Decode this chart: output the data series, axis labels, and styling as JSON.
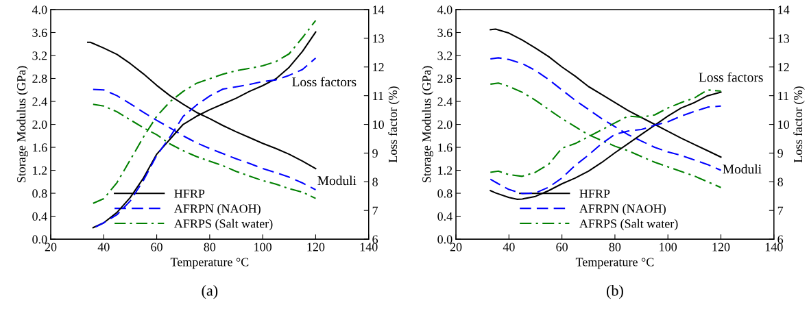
{
  "chart_data": [
    {
      "type": "line",
      "xlabel": "Temperature °C",
      "ylabel": "Storage Modulus (GPa)",
      "y2label": "Loss factor (%)",
      "xlim": [
        20,
        140
      ],
      "xticks": [
        20,
        40,
        60,
        80,
        100,
        120,
        140
      ],
      "ylim": [
        0,
        4
      ],
      "yticks": [
        {
          "value": 0,
          "label": "0.0"
        },
        {
          "value": 0.4,
          "label": "0.4"
        },
        {
          "value": 0.8,
          "label": "0.8"
        },
        {
          "value": 1.2,
          "label": "1.2"
        },
        {
          "value": 1.6,
          "label": "1.6"
        },
        {
          "value": 2,
          "label": "2.0"
        },
        {
          "value": 2.4,
          "label": "2.4"
        },
        {
          "value": 2.8,
          "label": "2.8"
        },
        {
          "value": 3.2,
          "label": "3.2"
        },
        {
          "value": 3.6,
          "label": "3.6"
        },
        {
          "value": 4,
          "label": "4.0"
        }
      ],
      "y2lim": [
        6,
        14
      ],
      "y2ticks": [
        6,
        7,
        8,
        9,
        10,
        11,
        12,
        13,
        14
      ],
      "grid": false,
      "legend": "bottom",
      "marker": "none",
      "annotations": [
        "Loss factors",
        "Moduli",
        "(a)"
      ],
      "series": [
        {
          "name": "HFRP",
          "color": "#000000",
          "line_style": "solid",
          "x": [
            34,
            35,
            40,
            45,
            50,
            55,
            60,
            65,
            70,
            75,
            80,
            85,
            90,
            95,
            100,
            105,
            110,
            115,
            120
          ],
          "values": [
            3.43,
            3.43,
            3.33,
            3.22,
            3.06,
            2.88,
            2.68,
            2.5,
            2.35,
            2.21,
            2.1,
            1.98,
            1.87,
            1.77,
            1.67,
            1.58,
            1.48,
            1.36,
            1.23
          ]
        },
        {
          "name": "AFRPN (NAOH)",
          "color": "#0000ff",
          "line_style": "dashed",
          "x": [
            36,
            40,
            45,
            50,
            55,
            60,
            65,
            70,
            75,
            80,
            85,
            90,
            95,
            100,
            105,
            110,
            115,
            120
          ],
          "values": [
            2.61,
            2.6,
            2.5,
            2.36,
            2.21,
            2.07,
            1.94,
            1.8,
            1.68,
            1.58,
            1.49,
            1.4,
            1.32,
            1.23,
            1.16,
            1.08,
            0.98,
            0.86
          ]
        },
        {
          "name": "AFRPS (Salt water)",
          "color": "#008000",
          "line_style": "dashdot",
          "x": [
            36,
            40,
            45,
            50,
            55,
            60,
            65,
            70,
            75,
            80,
            85,
            90,
            95,
            100,
            105,
            110,
            115,
            120
          ],
          "values": [
            2.35,
            2.32,
            2.22,
            2.08,
            1.94,
            1.82,
            1.66,
            1.54,
            1.44,
            1.36,
            1.28,
            1.18,
            1.1,
            1.02,
            0.96,
            0.88,
            0.82,
            0.71
          ]
        },
        {
          "color": "#000000",
          "line_style": "solid",
          "axis": "y2",
          "x": [
            36,
            40,
            45,
            50,
            55,
            60,
            65,
            70,
            75,
            80,
            85,
            90,
            95,
            100,
            105,
            110,
            115,
            120
          ],
          "values": [
            6.4,
            6.57,
            6.93,
            7.45,
            8.13,
            8.96,
            9.48,
            10.0,
            10.28,
            10.51,
            10.71,
            10.91,
            11.15,
            11.35,
            11.59,
            11.99,
            12.54,
            13.22
          ]
        },
        {
          "color": "#0000ff",
          "line_style": "dashed",
          "axis": "y2",
          "x": [
            37,
            40,
            45,
            50,
            55,
            60,
            65,
            70,
            75,
            80,
            85,
            90,
            95,
            100,
            105,
            110,
            115,
            120
          ],
          "values": [
            6.43,
            6.57,
            6.85,
            7.33,
            8.05,
            8.92,
            9.56,
            10.28,
            10.67,
            10.99,
            11.23,
            11.31,
            11.39,
            11.49,
            11.55,
            11.71,
            11.91,
            12.31
          ]
        },
        {
          "color": "#008000",
          "line_style": "dashdot",
          "axis": "y2",
          "x": [
            36,
            40,
            45,
            50,
            55,
            60,
            65,
            70,
            75,
            80,
            85,
            90,
            95,
            100,
            105,
            110,
            115,
            120
          ],
          "values": [
            7.25,
            7.41,
            7.97,
            8.76,
            9.56,
            10.28,
            10.79,
            11.15,
            11.43,
            11.59,
            11.75,
            11.87,
            11.95,
            12.04,
            12.19,
            12.46,
            13.02,
            13.62
          ]
        }
      ]
    },
    {
      "type": "line",
      "xlabel": "Temperature °C",
      "ylabel": "Storage Modulus (GPa)",
      "y2label": "Loss factor (%)",
      "xlim": [
        20,
        140
      ],
      "xticks": [
        20,
        40,
        60,
        80,
        100,
        120,
        140
      ],
      "ylim": [
        0,
        4
      ],
      "yticks": [
        {
          "value": 0,
          "label": "0.0"
        },
        {
          "value": 0.4,
          "label": "0.4"
        },
        {
          "value": 0.8,
          "label": "0.8"
        },
        {
          "value": 1.2,
          "label": "1.2"
        },
        {
          "value": 1.6,
          "label": "1.6"
        },
        {
          "value": 2,
          "label": "2.0"
        },
        {
          "value": 2.4,
          "label": "2.4"
        },
        {
          "value": 2.8,
          "label": "2.8"
        },
        {
          "value": 3.2,
          "label": "3.2"
        },
        {
          "value": 3.6,
          "label": "3.6"
        },
        {
          "value": 4,
          "label": "4.0"
        }
      ],
      "y2lim": [
        6,
        14
      ],
      "y2ticks": [
        6,
        7,
        8,
        9,
        10,
        11,
        12,
        13,
        14
      ],
      "grid": false,
      "legend": "bottom",
      "marker": "none",
      "annotations": [
        "Loss factors",
        "Moduli",
        "(b)"
      ],
      "series": [
        {
          "name": "HFRP",
          "color": "#000000",
          "line_style": "solid",
          "x": [
            33,
            35,
            40,
            45,
            50,
            55,
            60,
            65,
            70,
            75,
            80,
            85,
            90,
            95,
            100,
            105,
            110,
            115,
            120
          ],
          "values": [
            3.65,
            3.66,
            3.59,
            3.47,
            3.33,
            3.18,
            3.0,
            2.84,
            2.66,
            2.52,
            2.38,
            2.24,
            2.12,
            2.0,
            1.88,
            1.76,
            1.65,
            1.54,
            1.43
          ]
        },
        {
          "name": "AFRPN (NAOH)",
          "color": "#0000ff",
          "line_style": "dashed",
          "x": [
            33,
            36,
            40,
            45,
            50,
            55,
            60,
            65,
            70,
            75,
            80,
            85,
            90,
            95,
            100,
            105,
            110,
            115,
            120
          ],
          "values": [
            3.14,
            3.16,
            3.13,
            3.06,
            2.94,
            2.78,
            2.6,
            2.42,
            2.26,
            2.1,
            1.96,
            1.82,
            1.71,
            1.6,
            1.52,
            1.46,
            1.38,
            1.3,
            1.2
          ]
        },
        {
          "name": "AFRPS (Salt water)",
          "color": "#008000",
          "line_style": "dashdot",
          "x": [
            33,
            36,
            40,
            45,
            50,
            55,
            60,
            65,
            70,
            75,
            80,
            85,
            90,
            95,
            100,
            105,
            110,
            115,
            120
          ],
          "values": [
            2.7,
            2.72,
            2.66,
            2.56,
            2.42,
            2.26,
            2.1,
            1.96,
            1.82,
            1.72,
            1.62,
            1.54,
            1.44,
            1.34,
            1.26,
            1.18,
            1.1,
            1.0,
            0.9
          ]
        },
        {
          "color": "#000000",
          "line_style": "solid",
          "axis": "y2",
          "x": [
            33,
            35,
            40,
            43,
            45,
            50,
            55,
            60,
            65,
            70,
            75,
            80,
            85,
            90,
            95,
            100,
            105,
            110,
            115,
            120
          ],
          "values": [
            7.69,
            7.61,
            7.45,
            7.39,
            7.4,
            7.49,
            7.69,
            7.93,
            8.13,
            8.37,
            8.67,
            9.01,
            9.33,
            9.65,
            9.97,
            10.29,
            10.57,
            10.76,
            11.0,
            11.12
          ]
        },
        {
          "color": "#0000ff",
          "line_style": "dashed",
          "axis": "y2",
          "x": [
            33,
            36,
            40,
            45,
            50,
            55,
            60,
            65,
            70,
            75,
            80,
            85,
            90,
            95,
            100,
            105,
            110,
            115,
            120
          ],
          "values": [
            8.09,
            7.93,
            7.73,
            7.59,
            7.61,
            7.81,
            8.13,
            8.57,
            8.93,
            9.33,
            9.65,
            9.77,
            9.82,
            9.97,
            10.09,
            10.29,
            10.45,
            10.6,
            10.64
          ]
        },
        {
          "color": "#008000",
          "line_style": "dashdot",
          "axis": "y2",
          "x": [
            33,
            36,
            40,
            45,
            50,
            55,
            60,
            65,
            70,
            75,
            80,
            85,
            90,
            95,
            100,
            105,
            110,
            115,
            120
          ],
          "values": [
            8.33,
            8.37,
            8.25,
            8.19,
            8.33,
            8.61,
            9.17,
            9.33,
            9.57,
            9.81,
            10.05,
            10.29,
            10.25,
            10.33,
            10.57,
            10.76,
            10.92,
            11.2,
            11.16
          ]
        }
      ]
    }
  ]
}
